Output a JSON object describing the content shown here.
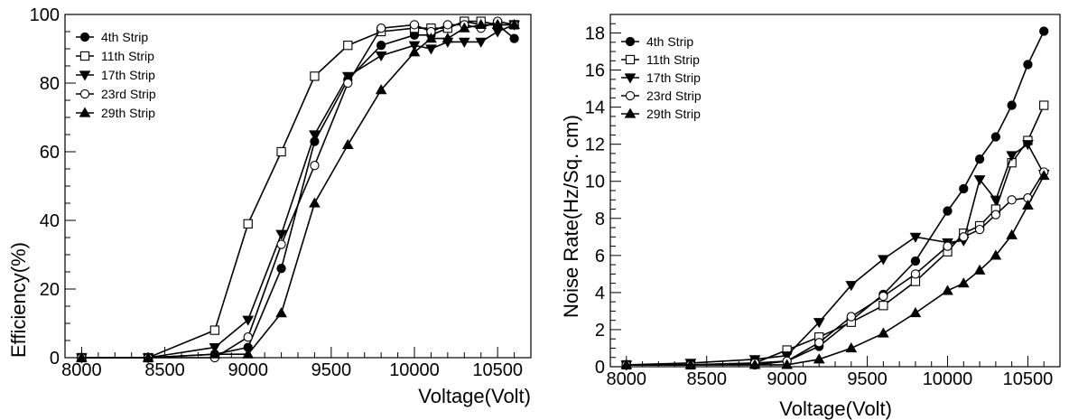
{
  "chart_data": [
    {
      "type": "line",
      "xlabel": "Voltage(Volt)",
      "ylabel": "Efficiency(%)",
      "xlim": [
        7900,
        10700
      ],
      "ylim": [
        0,
        100
      ],
      "xticks": [
        8000,
        8500,
        9000,
        9500,
        10000,
        10500
      ],
      "yticks": [
        0,
        20,
        40,
        60,
        80,
        100
      ],
      "legend_position": "top-left",
      "grid": false,
      "series": [
        {
          "name": "4th Strip",
          "marker": "circle-filled",
          "x": [
            8000,
            8400,
            8800,
            9000,
            9200,
            9400,
            9600,
            9800,
            10000,
            10100,
            10200,
            10300,
            10400,
            10500,
            10600
          ],
          "y": [
            0,
            0,
            1,
            3,
            26,
            63,
            81,
            91,
            94,
            94,
            96,
            98,
            97,
            97,
            93
          ]
        },
        {
          "name": "11th Strip",
          "marker": "square-open",
          "x": [
            8000,
            8400,
            8800,
            9000,
            9200,
            9400,
            9600,
            9800,
            10000,
            10100,
            10200,
            10300,
            10400,
            10500,
            10600
          ],
          "y": [
            0,
            0,
            8,
            39,
            60,
            82,
            91,
            95,
            96,
            96,
            96,
            98,
            98,
            97,
            97
          ]
        },
        {
          "name": "17th Strip",
          "marker": "triangle-down-filled",
          "x": [
            8000,
            8400,
            8800,
            9000,
            9200,
            9400,
            9600,
            9800,
            10000,
            10100,
            10200,
            10300,
            10400,
            10500,
            10600
          ],
          "y": [
            0,
            0,
            3,
            11,
            36,
            65,
            82,
            88,
            91,
            90,
            92,
            92,
            92,
            95,
            97
          ]
        },
        {
          "name": "23rd Strip",
          "marker": "circle-open",
          "x": [
            8000,
            8400,
            8800,
            9000,
            9200,
            9400,
            9600,
            9800,
            10000,
            10100,
            10200,
            10300,
            10400,
            10500,
            10600
          ],
          "y": [
            0,
            0,
            0,
            6,
            33,
            56,
            80,
            96,
            97,
            95,
            97,
            97,
            96,
            98,
            97
          ]
        },
        {
          "name": "29th Strip",
          "marker": "triangle-up-filled",
          "x": [
            8000,
            8400,
            8800,
            9000,
            9200,
            9400,
            9600,
            9800,
            10000,
            10100,
            10200,
            10300,
            10400,
            10500,
            10600
          ],
          "y": [
            0,
            0,
            1,
            1,
            13,
            45,
            62,
            78,
            89,
            93,
            93,
            96,
            97,
            97,
            97
          ]
        }
      ]
    },
    {
      "type": "line",
      "xlabel": "Voltage(Volt)",
      "ylabel": "Noise Rate(Hz/Sq. cm)",
      "xlim": [
        7900,
        10700
      ],
      "ylim": [
        0,
        19
      ],
      "xticks": [
        8000,
        8500,
        9000,
        9500,
        10000,
        10500
      ],
      "yticks": [
        0,
        2,
        4,
        6,
        8,
        10,
        12,
        14,
        16,
        18
      ],
      "legend_position": "top-left",
      "grid": false,
      "series": [
        {
          "name": "4th Strip",
          "marker": "circle-filled",
          "x": [
            8000,
            8400,
            8800,
            9000,
            9200,
            9400,
            9600,
            9800,
            10000,
            10100,
            10200,
            10300,
            10400,
            10500,
            10600
          ],
          "y": [
            0.1,
            0.1,
            0.1,
            0.3,
            1.1,
            2.5,
            3.9,
            5.7,
            8.4,
            9.6,
            11.2,
            12.4,
            14.1,
            16.3,
            18.1
          ]
        },
        {
          "name": "11th Strip",
          "marker": "square-open",
          "x": [
            8000,
            8400,
            8800,
            9000,
            9200,
            9400,
            9600,
            9800,
            10000,
            10100,
            10200,
            10300,
            10400,
            10500,
            10600
          ],
          "y": [
            0.1,
            0.1,
            0.2,
            0.9,
            1.6,
            2.4,
            3.3,
            4.6,
            6.2,
            7.2,
            7.6,
            8.5,
            11.0,
            12.2,
            14.1
          ]
        },
        {
          "name": "17th Strip",
          "marker": "triangle-down-filled",
          "x": [
            8000,
            8400,
            8800,
            9000,
            9200,
            9400,
            9600,
            9800,
            10000,
            10100,
            10200,
            10300,
            10400,
            10500,
            10600
          ],
          "y": [
            0.1,
            0.2,
            0.4,
            0.6,
            2.4,
            4.4,
            5.8,
            7.0,
            6.7,
            6.8,
            10.1,
            9.0,
            11.4,
            12.0,
            10.4
          ]
        },
        {
          "name": "23rd Strip",
          "marker": "circle-open",
          "x": [
            8000,
            8400,
            8800,
            9000,
            9200,
            9400,
            9600,
            9800,
            10000,
            10100,
            10200,
            10300,
            10400,
            10500,
            10600
          ],
          "y": [
            0.1,
            0.1,
            0.2,
            0.3,
            1.3,
            2.7,
            3.8,
            5.0,
            6.5,
            7.0,
            7.4,
            8.2,
            9.0,
            9.1,
            10.5
          ]
        },
        {
          "name": "29th Strip",
          "marker": "triangle-up-filled",
          "x": [
            8000,
            8400,
            8800,
            9000,
            9200,
            9400,
            9600,
            9800,
            10000,
            10100,
            10200,
            10300,
            10400,
            10500,
            10600
          ],
          "y": [
            0.1,
            0.1,
            0.1,
            0.1,
            0.4,
            1.0,
            1.8,
            2.9,
            4.1,
            4.5,
            5.2,
            6.0,
            7.1,
            8.7,
            10.3
          ]
        }
      ]
    }
  ]
}
